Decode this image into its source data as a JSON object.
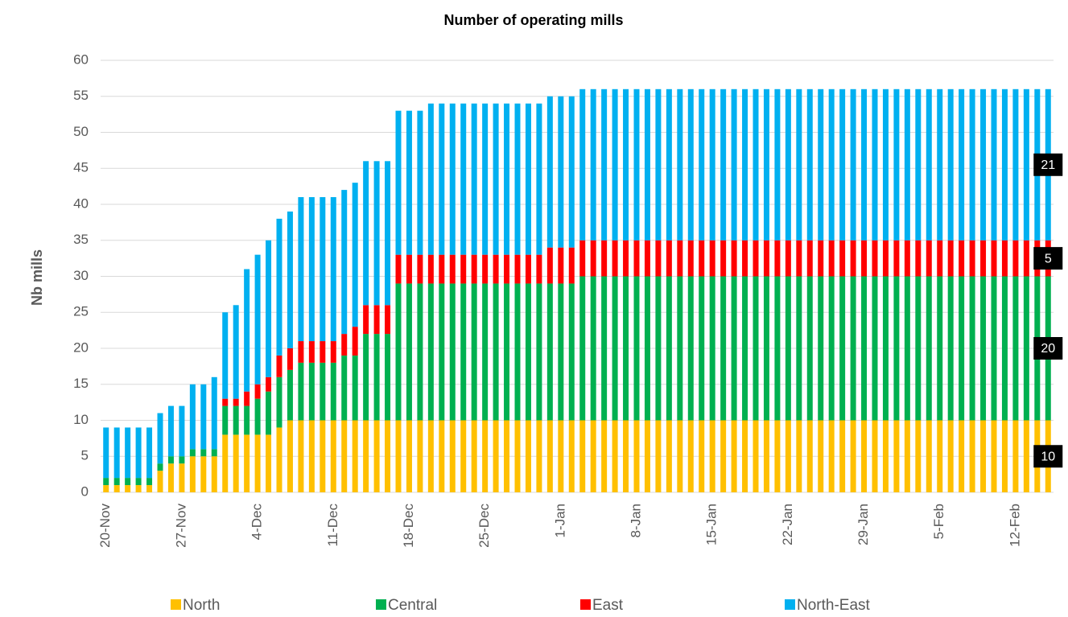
{
  "chart_data": {
    "type": "stacked_bar",
    "title": "Number of operating mills",
    "y_label": "Nb mills",
    "categories": [
      "20-Nov",
      null,
      null,
      null,
      null,
      null,
      null,
      "27-Nov",
      null,
      null,
      null,
      null,
      null,
      null,
      "4-Dec",
      null,
      null,
      null,
      null,
      null,
      null,
      "11-Dec",
      null,
      null,
      null,
      null,
      null,
      null,
      "18-Dec",
      null,
      null,
      null,
      null,
      null,
      null,
      "25-Dec",
      null,
      null,
      null,
      null,
      null,
      null,
      "1-Jan",
      null,
      null,
      null,
      null,
      null,
      null,
      "8-Jan",
      null,
      null,
      null,
      null,
      null,
      null,
      "15-Jan",
      null,
      null,
      null,
      null,
      null,
      null,
      "22-Jan",
      null,
      null,
      null,
      null,
      null,
      null,
      "29-Jan",
      null,
      null,
      null,
      null,
      null,
      null,
      "5-Feb",
      null,
      null,
      null,
      null,
      null,
      null,
      "12-Feb",
      null,
      null,
      null
    ],
    "series": [
      {
        "name": "North",
        "color": "#ffc000",
        "values": [
          1,
          1,
          1,
          1,
          1,
          3,
          4,
          4,
          5,
          5,
          5,
          8,
          8,
          8,
          8,
          8,
          9,
          10,
          10,
          10,
          10,
          10,
          10,
          10,
          10,
          10,
          10,
          10,
          10,
          10,
          10,
          10,
          10,
          10,
          10,
          10,
          10,
          10,
          10,
          10,
          10,
          10,
          10,
          10,
          10,
          10,
          10,
          10,
          10,
          10,
          10,
          10,
          10,
          10,
          10,
          10,
          10,
          10,
          10,
          10,
          10,
          10,
          10,
          10,
          10,
          10,
          10,
          10,
          10,
          10,
          10,
          10,
          10,
          10,
          10,
          10,
          10,
          10,
          10,
          10,
          10,
          10,
          10,
          10,
          10,
          10,
          10,
          10
        ]
      },
      {
        "name": "Central",
        "color": "#00b050",
        "values": [
          1,
          1,
          1,
          1,
          1,
          1,
          1,
          1,
          1,
          1,
          1,
          4,
          4,
          4,
          5,
          6,
          7,
          7,
          8,
          8,
          8,
          8,
          9,
          9,
          12,
          12,
          12,
          19,
          19,
          19,
          19,
          19,
          19,
          19,
          19,
          19,
          19,
          19,
          19,
          19,
          19,
          19,
          19,
          19,
          20,
          20,
          20,
          20,
          20,
          20,
          20,
          20,
          20,
          20,
          20,
          20,
          20,
          20,
          20,
          20,
          20,
          20,
          20,
          20,
          20,
          20,
          20,
          20,
          20,
          20,
          20,
          20,
          20,
          20,
          20,
          20,
          20,
          20,
          20,
          20,
          20,
          20,
          20,
          20,
          20,
          20,
          20,
          20
        ]
      },
      {
        "name": "East",
        "color": "#ff0000",
        "values": [
          0,
          0,
          0,
          0,
          0,
          0,
          0,
          0,
          0,
          0,
          0,
          1,
          1,
          2,
          2,
          2,
          3,
          3,
          3,
          3,
          3,
          3,
          3,
          4,
          4,
          4,
          4,
          4,
          4,
          4,
          4,
          4,
          4,
          4,
          4,
          4,
          4,
          4,
          4,
          4,
          4,
          5,
          5,
          5,
          5,
          5,
          5,
          5,
          5,
          5,
          5,
          5,
          5,
          5,
          5,
          5,
          5,
          5,
          5,
          5,
          5,
          5,
          5,
          5,
          5,
          5,
          5,
          5,
          5,
          5,
          5,
          5,
          5,
          5,
          5,
          5,
          5,
          5,
          5,
          5,
          5,
          5,
          5,
          5,
          5,
          5,
          5,
          5
        ]
      },
      {
        "name": "North-East",
        "color": "#00b0f0",
        "values": [
          7,
          7,
          7,
          7,
          7,
          7,
          7,
          7,
          9,
          9,
          10,
          12,
          13,
          17,
          18,
          19,
          19,
          19,
          20,
          20,
          20,
          20,
          20,
          20,
          20,
          20,
          20,
          20,
          20,
          20,
          21,
          21,
          21,
          21,
          21,
          21,
          21,
          21,
          21,
          21,
          21,
          21,
          21,
          21,
          21,
          21,
          21,
          21,
          21,
          21,
          21,
          21,
          21,
          21,
          21,
          21,
          21,
          21,
          21,
          21,
          21,
          21,
          21,
          21,
          21,
          21,
          21,
          21,
          21,
          21,
          21,
          21,
          21,
          21,
          21,
          21,
          21,
          21,
          21,
          21,
          21,
          21,
          21,
          21,
          21,
          21,
          21,
          21
        ]
      }
    ],
    "ylim": [
      0,
      60
    ],
    "yticks": [
      0,
      5,
      10,
      15,
      20,
      25,
      30,
      35,
      40,
      45,
      50,
      55,
      60
    ],
    "grid": true,
    "legend": "bottom"
  }
}
